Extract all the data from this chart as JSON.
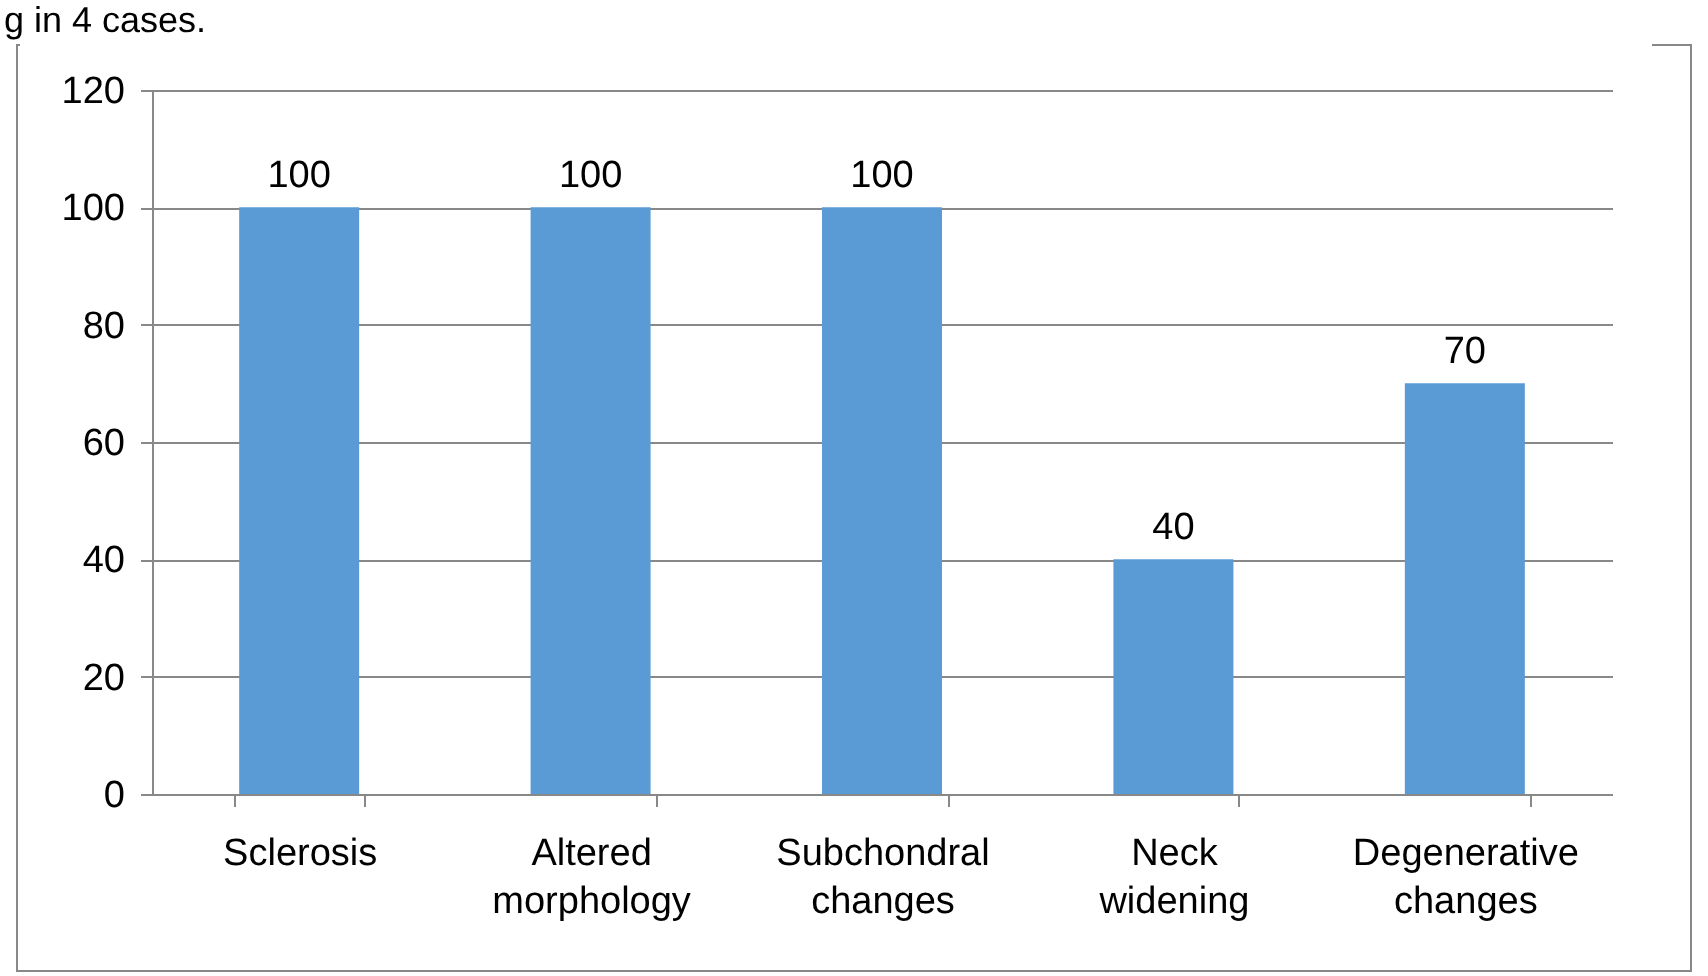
{
  "chart_data": {
    "type": "bar",
    "annotations": [
      "g in 4 cases."
    ],
    "categories": [
      "Sclerosis",
      "Altered morphology",
      "Subchondral changes",
      "Neck widening",
      "Degenerative changes"
    ],
    "values": [
      100,
      100,
      100,
      40,
      70
    ],
    "color": "#5b9bd5",
    "ylim": [
      0,
      120
    ],
    "yticks": [
      0,
      20,
      40,
      60,
      80,
      100,
      120
    ],
    "grid": "y",
    "data_labels": true
  }
}
